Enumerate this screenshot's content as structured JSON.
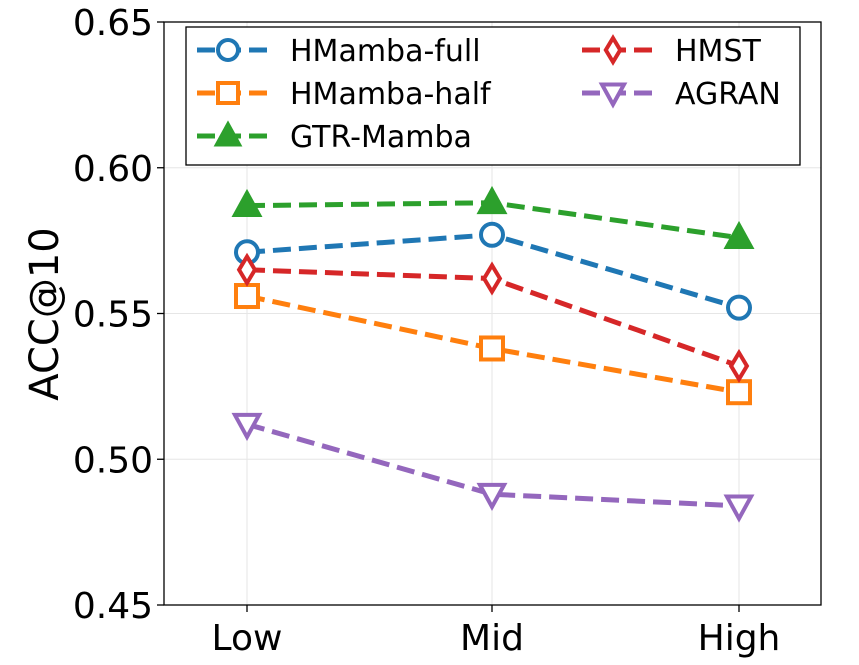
{
  "chart_data": {
    "type": "line",
    "title": "",
    "xlabel": "",
    "ylabel": "ACC@10",
    "categories": [
      "Low",
      "Mid",
      "High"
    ],
    "ylim": [
      0.45,
      0.65
    ],
    "yticks": [
      "0.45",
      "0.50",
      "0.55",
      "0.60",
      "0.65"
    ],
    "ytick_values": [
      0.45,
      0.5,
      0.55,
      0.6,
      0.65
    ],
    "grid": true,
    "legend_position": "top",
    "series": [
      {
        "name": "HMamba-full",
        "values": [
          0.571,
          0.577,
          0.552
        ],
        "color": "#1f77b4",
        "marker": "circle",
        "filled": false
      },
      {
        "name": "HMamba-half",
        "values": [
          0.556,
          0.538,
          0.523
        ],
        "color": "#ff7f0e",
        "marker": "square",
        "filled": false
      },
      {
        "name": "GTR-Mamba",
        "values": [
          0.587,
          0.588,
          0.576
        ],
        "color": "#2ca02c",
        "marker": "triangle-up",
        "filled": true
      },
      {
        "name": "HMST",
        "values": [
          0.565,
          0.562,
          0.532
        ],
        "color": "#d62728",
        "marker": "diamond",
        "filled": false
      },
      {
        "name": "AGRAN",
        "values": [
          0.512,
          0.488,
          0.484
        ],
        "color": "#9467bd",
        "marker": "triangle-down",
        "filled": false
      }
    ]
  }
}
